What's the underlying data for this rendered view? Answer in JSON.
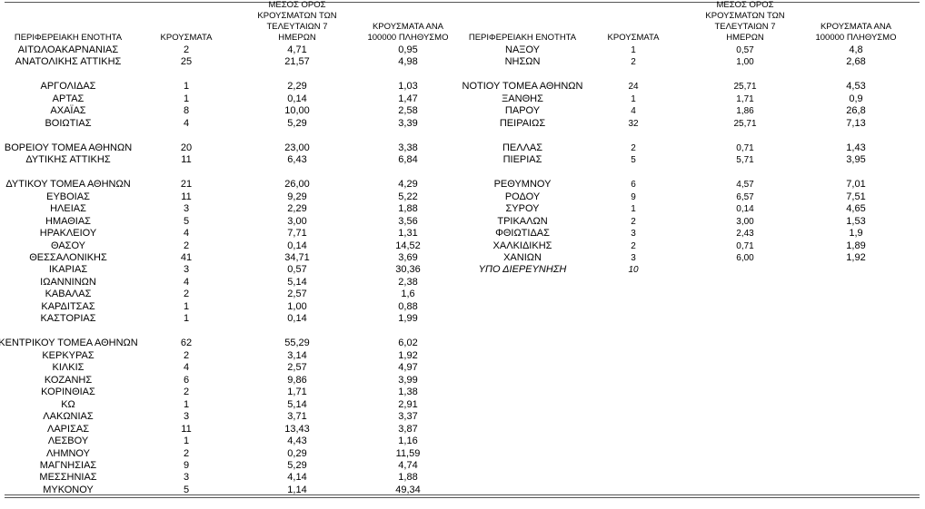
{
  "tables": [
    {
      "headers": [
        "ΠΕΡΙΦΕΡΕΙΑΚΗ ΕΝΟΤΗΤΑ",
        "ΚΡΟΥΣΜΑΤΑ",
        "ΜΕΣΟΣ ΟΡΟΣ ΚΡΟΥΣΜΑΤΩΝ ΤΩΝ ΤΕΛΕΥΤΑΙΩΝ 7 ΗΜΕΡΩΝ",
        "ΚΡΟΥΣΜΑΤΑ ΑΝΑ 100000 ΠΛΗΘΥΣΜΟ"
      ],
      "groups": [
        [
          [
            "ΑΙΤΩΛΟΑΚΑΡΝΑΝΙΑΣ",
            "2",
            "4,71",
            "0,95"
          ],
          [
            "ΑΝΑΤΟΛΙΚΗΣ ΑΤΤΙΚΗΣ",
            "25",
            "21,57",
            "4,98"
          ]
        ],
        [
          [
            "ΑΡΓΟΛΙΔΑΣ",
            "1",
            "2,29",
            "1,03"
          ],
          [
            "ΑΡΤΑΣ",
            "1",
            "0,14",
            "1,47"
          ],
          [
            "ΑΧΑΪΑΣ",
            "8",
            "10,00",
            "2,58"
          ],
          [
            "ΒΟΙΩΤΙΑΣ",
            "4",
            "5,29",
            "3,39"
          ]
        ],
        [
          [
            "ΒΟΡΕΙΟΥ ΤΟΜΕΑ ΑΘΗΝΩΝ",
            "20",
            "23,00",
            "3,38"
          ],
          [
            "ΔΥΤΙΚΗΣ ΑΤΤΙΚΗΣ",
            "11",
            "6,43",
            "6,84"
          ]
        ],
        [
          [
            "ΔΥΤΙΚΟΥ ΤΟΜΕΑ ΑΘΗΝΩΝ",
            "21",
            "26,00",
            "4,29"
          ],
          [
            "ΕΥΒΟΙΑΣ",
            "11",
            "9,29",
            "5,22"
          ],
          [
            "ΗΛΕΙΑΣ",
            "3",
            "2,29",
            "1,88"
          ],
          [
            "ΗΜΑΘΙΑΣ",
            "5",
            "3,00",
            "3,56"
          ],
          [
            "ΗΡΑΚΛΕΙΟΥ",
            "4",
            "7,71",
            "1,31"
          ],
          [
            "ΘΑΣΟΥ",
            "2",
            "0,14",
            "14,52"
          ],
          [
            "ΘΕΣΣΑΛΟΝΙΚΗΣ",
            "41",
            "34,71",
            "3,69"
          ],
          [
            "ΙΚΑΡΙΑΣ",
            "3",
            "0,57",
            "30,36"
          ],
          [
            "ΙΩΑΝΝΙΝΩΝ",
            "4",
            "5,14",
            "2,38"
          ],
          [
            "ΚΑΒΑΛΑΣ",
            "2",
            "2,57",
            "1,6"
          ],
          [
            "ΚΑΡΔΙΤΣΑΣ",
            "1",
            "1,00",
            "0,88"
          ],
          [
            "ΚΑΣΤΟΡΙΑΣ",
            "1",
            "0,14",
            "1,99"
          ]
        ],
        [
          [
            "ΚΕΝΤΡΙΚΟΥ ΤΟΜΕΑ ΑΘΗΝΩΝ",
            "62",
            "55,29",
            "6,02"
          ],
          [
            "ΚΕΡΚΥΡΑΣ",
            "2",
            "3,14",
            "1,92"
          ],
          [
            "ΚΙΛΚΙΣ",
            "4",
            "2,57",
            "4,97"
          ],
          [
            "ΚΟΖΑΝΗΣ",
            "6",
            "9,86",
            "3,99"
          ],
          [
            "ΚΟΡΙΝΘΙΑΣ",
            "2",
            "1,71",
            "1,38"
          ],
          [
            "ΚΩ",
            "1",
            "5,14",
            "2,91"
          ],
          [
            "ΛΑΚΩΝΙΑΣ",
            "3",
            "3,71",
            "3,37"
          ],
          [
            "ΛΑΡΙΣΑΣ",
            "11",
            "13,43",
            "3,87"
          ],
          [
            "ΛΕΣΒΟΥ",
            "1",
            "4,43",
            "1,16"
          ],
          [
            "ΛΗΜΝΟΥ",
            "2",
            "0,29",
            "11,59"
          ],
          [
            "ΜΑΓΝΗΣΙΑΣ",
            "9",
            "5,29",
            "4,74"
          ],
          [
            "ΜΕΣΣΗΝΙΑΣ",
            "3",
            "4,14",
            "1,88"
          ],
          [
            "ΜΥΚΟΝΟΥ",
            "5",
            "1,14",
            "49,34"
          ]
        ]
      ]
    },
    {
      "headers": [
        "ΠΕΡΙΦΕΡΕΙΑΚΗ ΕΝΟΤΗΤΑ",
        "ΚΡΟΥΣΜΑΤΑ",
        "ΜΕΣΟΣ ΟΡΟΣ ΚΡΟΥΣΜΑΤΩΝ ΤΩΝ ΤΕΛΕΥΤΑΙΩΝ 7 ΗΜΕΡΩΝ",
        "ΚΡΟΥΣΜΑΤΑ ΑΝΑ 100000 ΠΛΗΘΥΣΜΟ"
      ],
      "groups": [
        [
          [
            "ΝΑΞΟΥ",
            "1",
            "0,57",
            "4,8"
          ],
          [
            "ΝΗΣΩΝ",
            "2",
            "1,00",
            "2,68"
          ]
        ],
        [
          [
            "ΝΟΤΙΟΥ ΤΟΜΕΑ ΑΘΗΝΩΝ",
            "24",
            "25,71",
            "4,53"
          ],
          [
            "ΞΑΝΘΗΣ",
            "1",
            "1,71",
            "0,9"
          ],
          [
            "ΠΑΡΟΥ",
            "4",
            "1,86",
            "26,8"
          ],
          [
            "ΠΕΙΡΑΙΩΣ",
            "32",
            "25,71",
            "7,13"
          ]
        ],
        [
          [
            "ΠΕΛΛΑΣ",
            "2",
            "0,71",
            "1,43"
          ],
          [
            "ΠΙΕΡΙΑΣ",
            "5",
            "5,71",
            "3,95"
          ]
        ],
        [
          [
            "ΡΕΘΥΜΝΟΥ",
            "6",
            "4,57",
            "7,01"
          ],
          [
            "ΡΟΔΟΥ",
            "9",
            "6,57",
            "7,51"
          ],
          [
            "ΣΥΡΟΥ",
            "1",
            "0,14",
            "4,65"
          ],
          [
            "ΤΡΙΚΑΛΩΝ",
            "2",
            "3,00",
            "1,53"
          ],
          [
            "ΦΘΙΩΤΙΔΑΣ",
            "3",
            "2,43",
            "1,9"
          ],
          [
            "ΧΑΛΚΙΔΙΚΗΣ",
            "2",
            "0,71",
            "1,89"
          ],
          [
            "ΧΑΝΙΩΝ",
            "3",
            "6,00",
            "1,92"
          ]
        ]
      ],
      "unassigned": [
        "ΥΠΟ ΔΙΕΡΕΥΝΗΣΗ",
        "10"
      ]
    }
  ]
}
